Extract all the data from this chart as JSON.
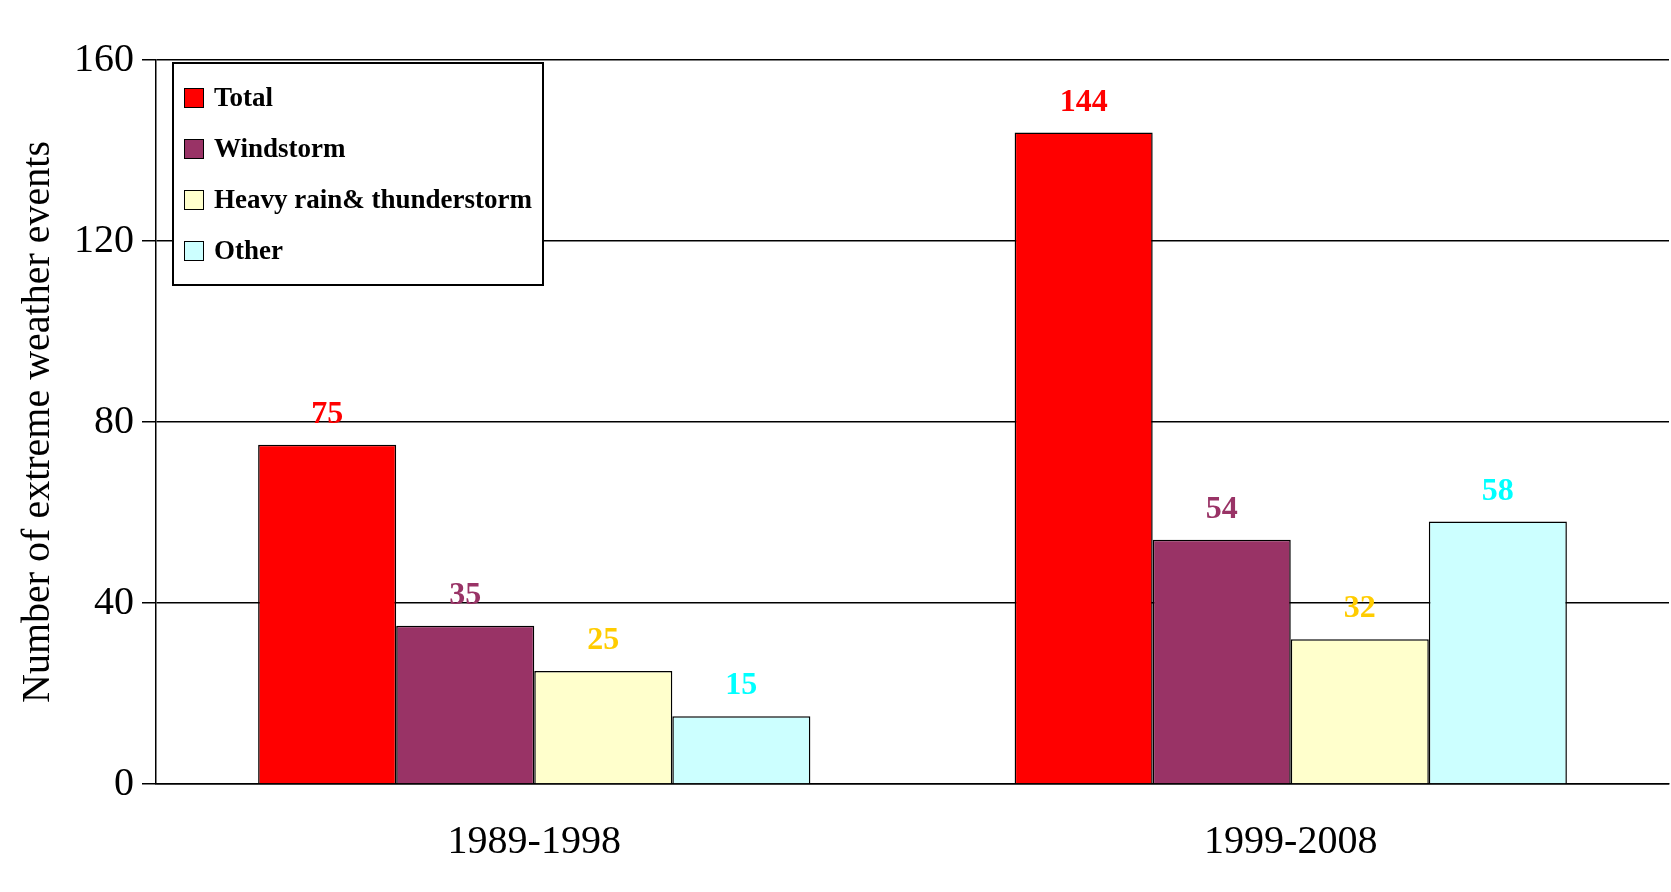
{
  "chart_data": {
    "type": "bar",
    "ylabel": "Number of extreme weather events",
    "categories": [
      "1989-1998",
      "1999-2008"
    ],
    "series": [
      {
        "name": "Total",
        "color": "#ff0000",
        "values": [
          75,
          144
        ]
      },
      {
        "name": "Windstorm",
        "color": "#993366",
        "values": [
          35,
          54
        ]
      },
      {
        "name": "Heavy rain& thunderstorm",
        "color": "#ffffcc",
        "values": [
          25,
          32
        ]
      },
      {
        "name": "Other",
        "color": "#ccffff",
        "values": [
          15,
          58
        ]
      }
    ],
    "ylim": [
      0,
      160
    ],
    "yticks": [
      0,
      40,
      80,
      120,
      160
    ],
    "grid": "y",
    "legend": "top left",
    "data_labels": true
  }
}
